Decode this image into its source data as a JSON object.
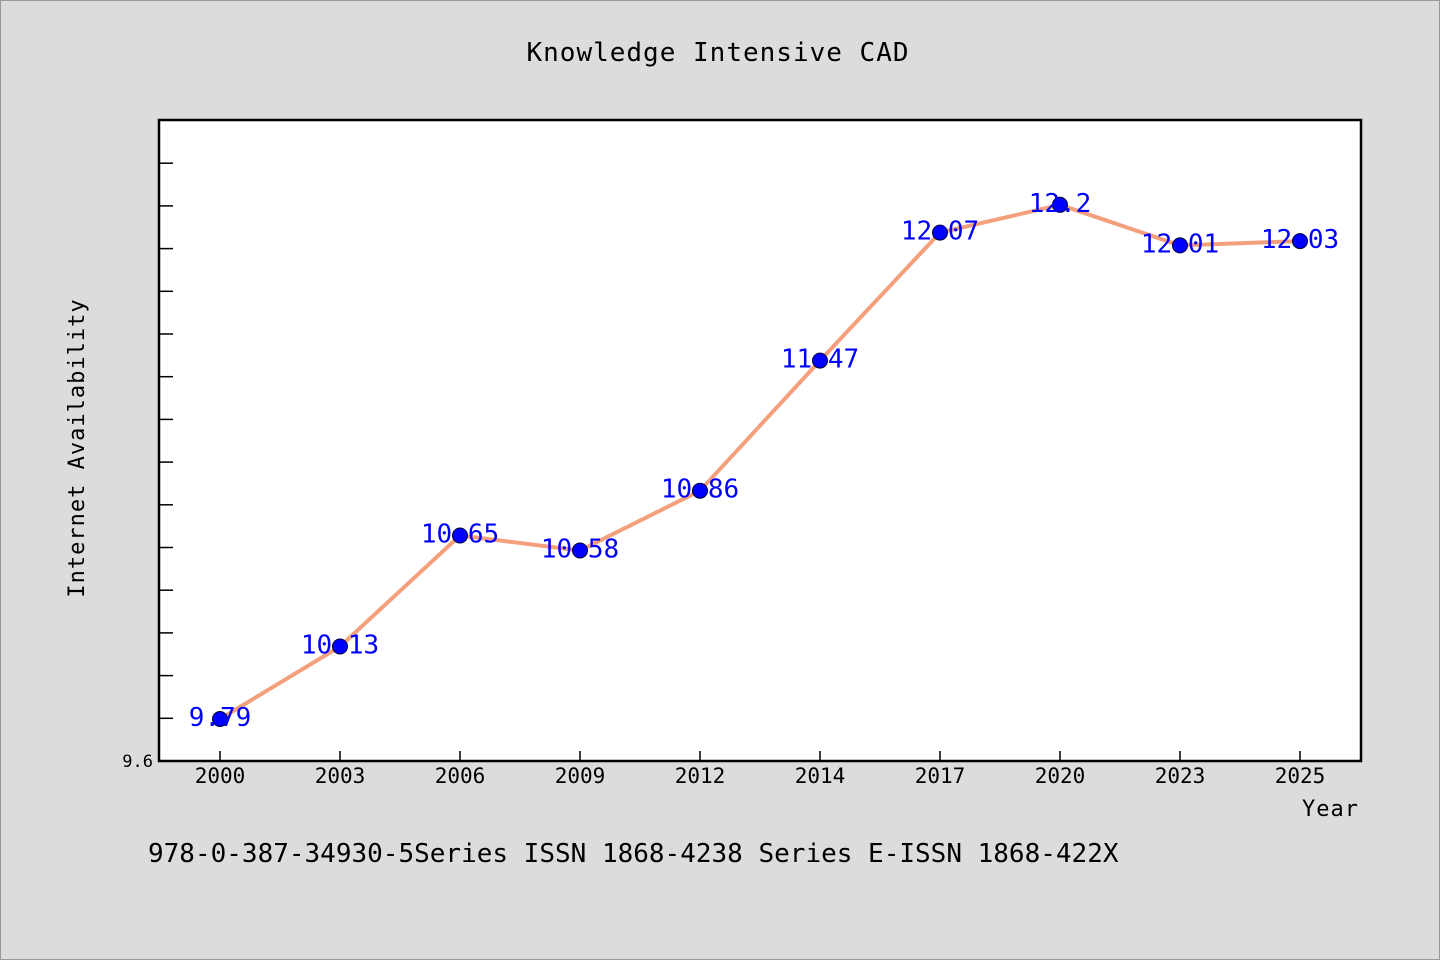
{
  "chart_data": {
    "type": "line",
    "title": "Knowledge Intensive CAD",
    "xlabel": "Year",
    "ylabel": "Internet Availability",
    "categories": [
      "2000",
      "2003",
      "2006",
      "2009",
      "2012",
      "2014",
      "2017",
      "2020",
      "2023",
      "2025"
    ],
    "series": [
      {
        "values": [
          9.79,
          10.13,
          10.65,
          10.58,
          10.86,
          11.47,
          12.07,
          12.2,
          12.01,
          12.03
        ],
        "data_labels": [
          "9.79",
          "10.13",
          "10.65",
          "10.58",
          "10.86",
          "11.47",
          "12.07",
          "12.2",
          "12.01",
          "12.03"
        ],
        "line_color": "#f4a07c",
        "marker_color": "#0000ff"
      }
    ],
    "ylim": [
      9.6,
      12.6
    ],
    "y_tick_labels": [
      "9.6"
    ],
    "grid": false,
    "legend": "none",
    "footnote": "978-0-387-34930-5Series ISSN 1868-4238 Series E-ISSN 1868-422X"
  },
  "colors": {
    "background": "#dcdcdc",
    "plot_background": "#ffffff",
    "line": "#f4a07c",
    "marker": "#0000ff",
    "data_label": "#0000ff"
  }
}
